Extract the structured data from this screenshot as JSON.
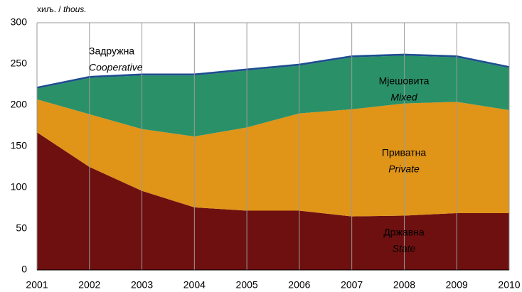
{
  "chart_data": {
    "type": "stacked_area",
    "ylabel": "хиљ. /",
    "ylabel_en": "thous.",
    "categories": [
      "2001",
      "2002",
      "2003",
      "2004",
      "2005",
      "2006",
      "2007",
      "2008",
      "2009",
      "2010"
    ],
    "ylim": [
      0,
      300
    ],
    "yticks": [
      0,
      50,
      100,
      150,
      200,
      250,
      300
    ],
    "grid": true,
    "series": [
      {
        "name": "Државна",
        "name_en": "State",
        "color": "#6e1010",
        "values": [
          167,
          125,
          96,
          76,
          72,
          72,
          65,
          66,
          69,
          69
        ]
      },
      {
        "name": "Приватна",
        "name_en": "Private",
        "color": "#e09418",
        "values": [
          40,
          64,
          75,
          86,
          101,
          118,
          130,
          136,
          135,
          125
        ]
      },
      {
        "name": "Мјешовита",
        "name_en": "Mixed",
        "color": "#2a9068",
        "values": [
          13,
          44,
          65,
          74,
          69,
          58,
          63,
          58,
          54,
          51
        ]
      },
      {
        "name": "Задружна",
        "name_en": "Cooperative",
        "color": "#1d4e8f",
        "values": [
          1.5,
          1.5,
          1.5,
          1.5,
          1.5,
          1.5,
          1.5,
          1.5,
          1.5,
          1.5
        ]
      }
    ]
  }
}
